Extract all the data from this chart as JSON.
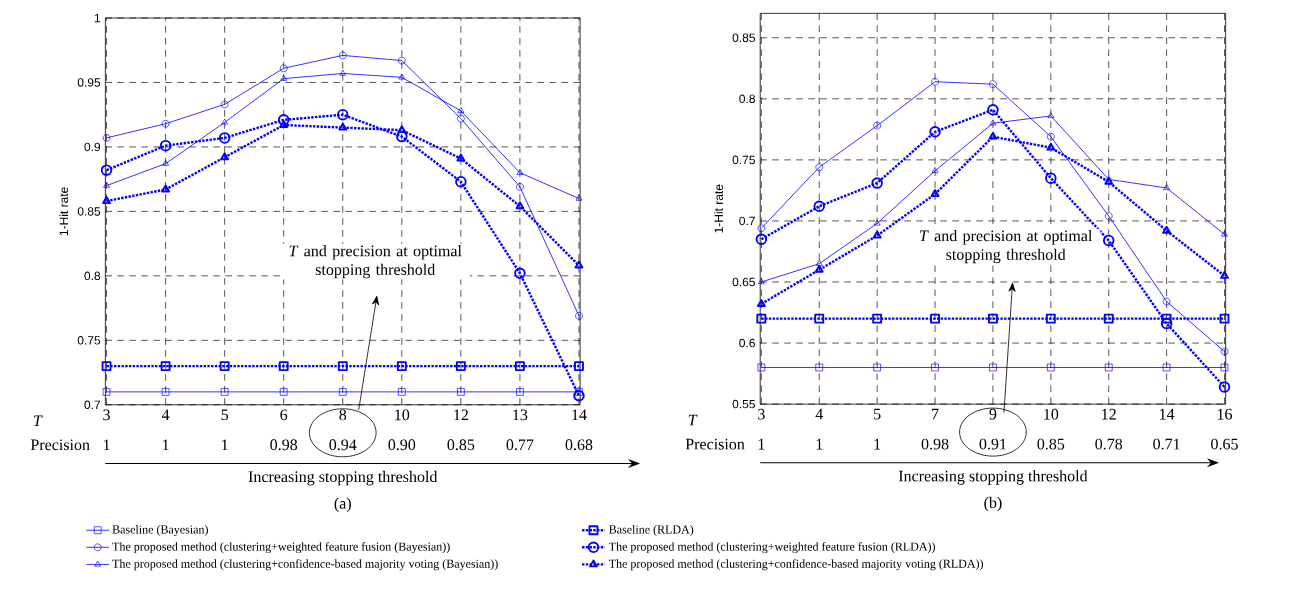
{
  "chart_data": [
    {
      "type": "line",
      "title": "(a)",
      "xlabel": "Increasing stopping threshold",
      "ylabel": "1-Hit rate",
      "categories": [
        "3",
        "4",
        "5",
        "6",
        "8",
        "10",
        "12",
        "13",
        "14"
      ],
      "ylim": [
        0.7,
        1
      ],
      "yticks": [
        0.7,
        0.75,
        0.8,
        0.85,
        0.9,
        0.95,
        1
      ],
      "grid": true,
      "legend": "bottom",
      "annotations": [
        "T",
        "Precision",
        "1",
        "1",
        "1",
        "0.98",
        "0.94",
        "0.90",
        "0.85",
        "0.77",
        "0.68",
        "*T* and precision at optimal stopping threshold"
      ],
      "series": [
        {
          "name": "Baseline (Bayesian)",
          "color": "#0000ff",
          "marker": "square",
          "line_style": "solid",
          "values": [
            0.71,
            0.71,
            0.71,
            0.71,
            0.71,
            0.71,
            0.71,
            0.71,
            0.71
          ]
        },
        {
          "name": "Baseline (RLDA)",
          "color": "#0000ff",
          "marker": "square",
          "line_style": "dotted",
          "values": [
            0.73,
            0.73,
            0.73,
            0.73,
            0.73,
            0.73,
            0.73,
            0.73,
            0.73
          ]
        },
        {
          "name": "The proposed method (clustering+weighted feature fusion (Bayesian))",
          "color": "#0000ff",
          "marker": "circle",
          "line_style": "solid",
          "values": [
            0.907,
            0.918,
            0.933,
            0.961,
            0.971,
            0.967,
            0.922,
            0.869,
            0.769
          ]
        },
        {
          "name": "The proposed method (clustering+weighted feature fusion (RLDA))",
          "color": "#0000ff",
          "marker": "circle",
          "line_style": "dotted",
          "values": [
            0.882,
            0.901,
            0.907,
            0.921,
            0.925,
            0.908,
            0.873,
            0.802,
            0.707
          ]
        },
        {
          "name": "The proposed method (clustering+confidence-based majority voting (Bayesian))",
          "color": "#0000ff",
          "marker": "triangle",
          "line_style": "solid",
          "values": [
            0.87,
            0.887,
            0.919,
            0.953,
            0.957,
            0.954,
            0.928,
            0.88,
            0.86
          ]
        },
        {
          "name": "The proposed method (clustering+confidence-based majority voting (RLDA))",
          "color": "#0000ff",
          "marker": "triangle",
          "line_style": "dotted",
          "values": [
            0.858,
            0.867,
            0.892,
            0.917,
            0.915,
            0.913,
            0.891,
            0.854,
            0.808
          ]
        }
      ]
    },
    {
      "type": "line",
      "title": "(b)",
      "xlabel": "Increasing stopping threshold",
      "ylabel": "1-Hit rate",
      "categories": [
        "3",
        "4",
        "5",
        "7",
        "9",
        "10",
        "12",
        "14",
        "16"
      ],
      "ylim": [
        0.55,
        0.87
      ],
      "yticks": [
        0.55,
        0.6,
        0.65,
        0.7,
        0.75,
        0.8,
        0.85
      ],
      "grid": true,
      "annotations": [
        "T",
        "Precision",
        "1",
        "1",
        "1",
        "0.98",
        "0.91",
        "0.85",
        "0.78",
        "0.71",
        "0.65",
        "*T* and precision at optimal stopping threshold"
      ],
      "series": [
        {
          "color": "#0000ff",
          "marker": "square",
          "line_style": "solid",
          "values": [
            0.58,
            0.58,
            0.58,
            0.58,
            0.58,
            0.58,
            0.58,
            0.58,
            0.58
          ]
        },
        {
          "color": "#0000ff",
          "marker": "square",
          "line_style": "dotted",
          "values": [
            0.62,
            0.62,
            0.62,
            0.62,
            0.62,
            0.62,
            0.62,
            0.62,
            0.62
          ]
        },
        {
          "color": "#0000ff",
          "marker": "circle",
          "line_style": "solid",
          "values": [
            0.694,
            0.744,
            0.778,
            0.814,
            0.812,
            0.769,
            0.704,
            0.634,
            0.593
          ]
        },
        {
          "color": "#0000ff",
          "marker": "circle",
          "line_style": "dotted",
          "values": [
            0.685,
            0.712,
            0.731,
            0.773,
            0.791,
            0.735,
            0.684,
            0.616,
            0.564
          ]
        },
        {
          "color": "#0000ff",
          "marker": "triangle",
          "line_style": "solid",
          "values": [
            0.65,
            0.665,
            0.698,
            0.741,
            0.78,
            0.786,
            0.734,
            0.727,
            0.689
          ]
        },
        {
          "color": "#0000ff",
          "marker": "triangle",
          "line_style": "dotted",
          "values": [
            0.632,
            0.66,
            0.688,
            0.722,
            0.769,
            0.76,
            0.732,
            0.692,
            0.655
          ]
        }
      ]
    }
  ]
}
